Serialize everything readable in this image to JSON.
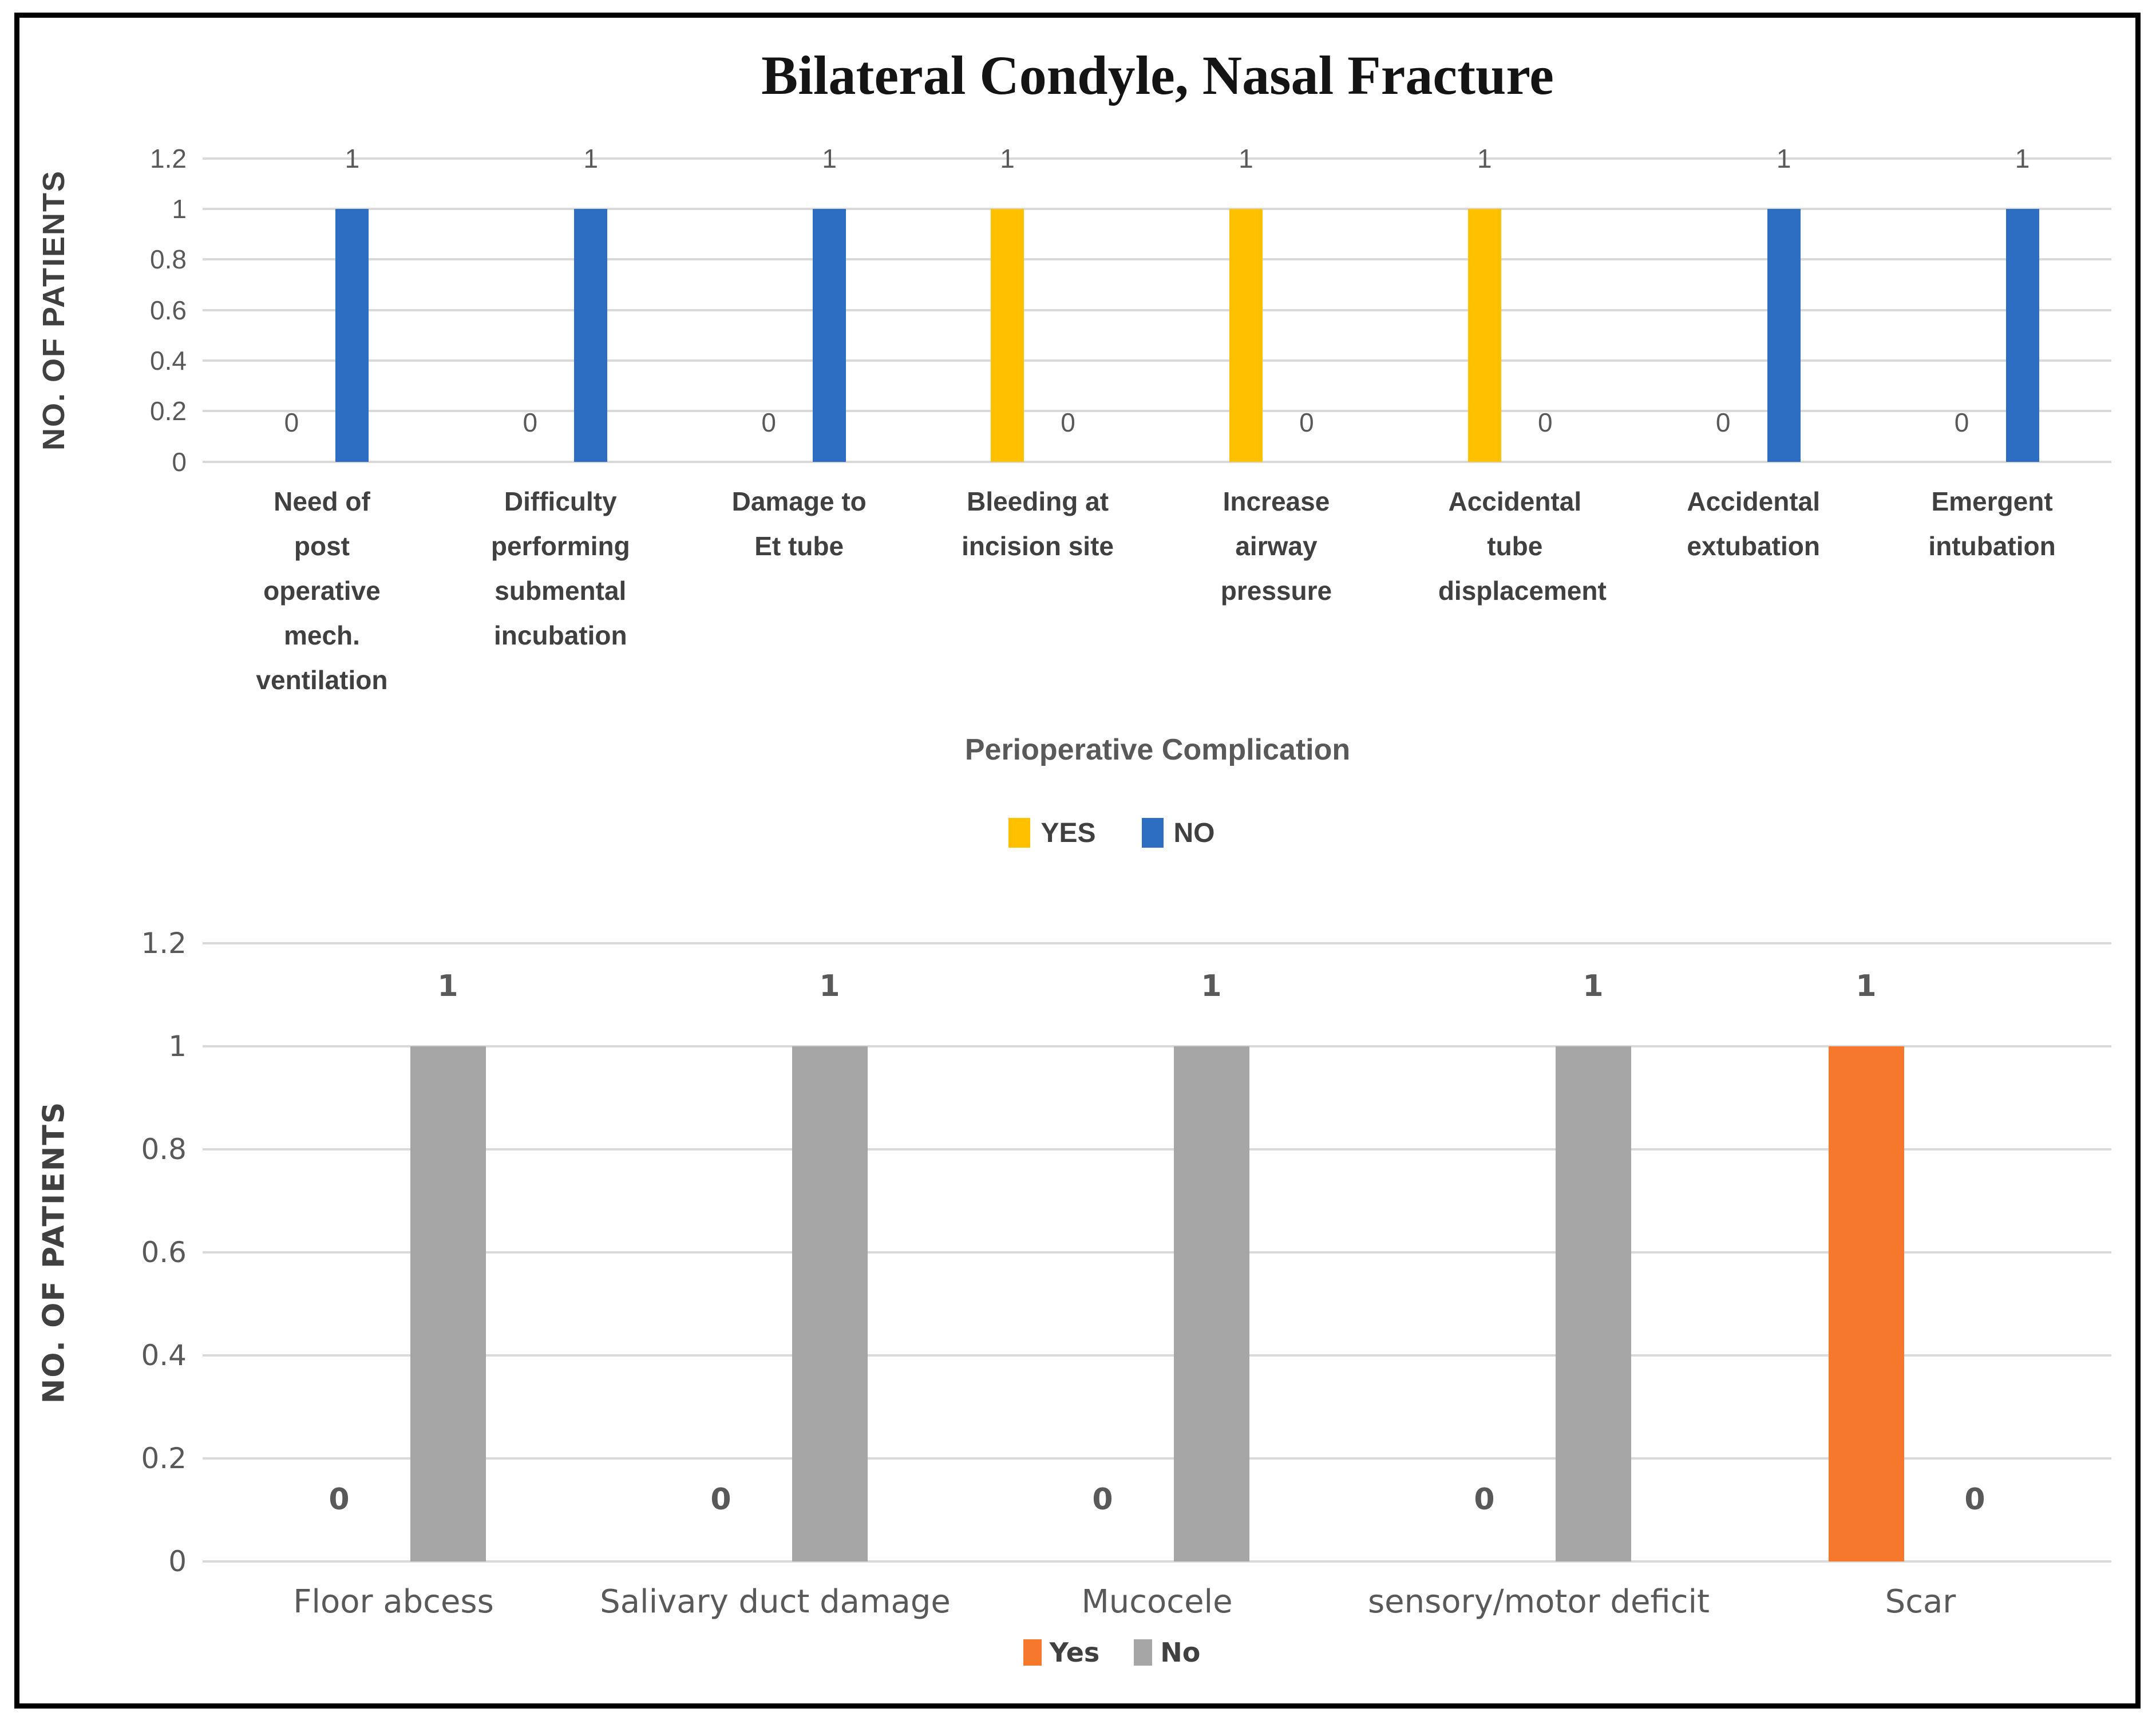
{
  "title": "Bilateral Condyle, Nasal Fracture",
  "styles": {
    "gridline_color": "#D9D9D9",
    "axis_text_color": "#595959",
    "category_text_color_top": "#404040",
    "category_text_color_bottom": "#595959",
    "title_color": "#141414",
    "frame_border_color": "#000000"
  },
  "chart_data": [
    {
      "type": "bar",
      "title": "Bilateral Condyle, Nasal Fracture",
      "ylabel": "NO. OF PATIENTS",
      "xlabel": "Perioperative Complication",
      "ylim": [
        0,
        1.2
      ],
      "ytick_labels": [
        "1.2",
        "1",
        "0.8",
        "0.6",
        "0.4",
        "0.2",
        "0"
      ],
      "grid": true,
      "legend_position": "bottom-center",
      "data_labels": true,
      "categories": [
        "Need of post operative mech. ventilation",
        "Difficulty performing submental incubation",
        "Damage to Et tube",
        "Bleeding at incision site",
        "Increase airway pressure",
        "Accidental tube displacement",
        "Accidental extubation",
        "Emergent intubation"
      ],
      "series": [
        {
          "name": "YES",
          "color": "#FFC000",
          "values": [
            0,
            0,
            0,
            1,
            1,
            1,
            0,
            0
          ]
        },
        {
          "name": "NO",
          "color": "#2D6EC3",
          "values": [
            1,
            1,
            1,
            0,
            0,
            0,
            1,
            1
          ]
        }
      ]
    },
    {
      "type": "bar",
      "title": "",
      "ylabel": "NO. OF PATIENTS",
      "xlabel": "",
      "ylim": [
        0,
        1.2
      ],
      "ytick_labels": [
        "1.2",
        "1",
        "0.8",
        "0.6",
        "0.4",
        "0.2",
        "0"
      ],
      "grid": true,
      "legend_position": "bottom-center",
      "data_labels": true,
      "categories": [
        "Floor abcess",
        "Salivary duct damage",
        "Mucocele",
        "sensory/motor deficit",
        "Scar"
      ],
      "series": [
        {
          "name": "Yes",
          "color": "#F5782D",
          "values": [
            0,
            0,
            0,
            0,
            1
          ]
        },
        {
          "name": "No",
          "color": "#A6A6A6",
          "values": [
            1,
            1,
            1,
            1,
            0
          ]
        }
      ]
    }
  ]
}
